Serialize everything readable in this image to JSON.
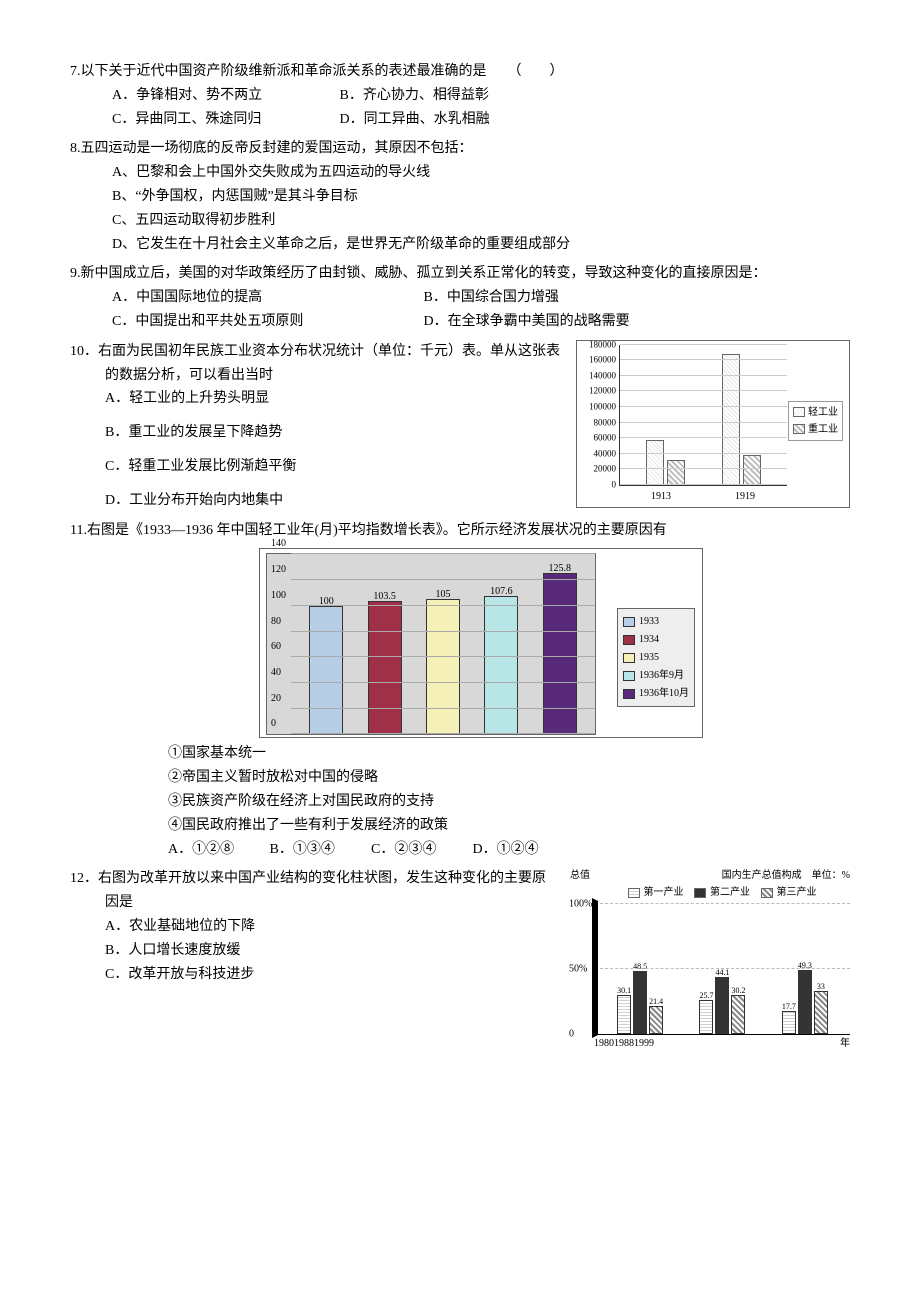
{
  "q7": {
    "stem": "7.以下关于近代中国资产阶级维新派和革命派关系的表述最准确的是　　（　　）",
    "a": "A．争锋相对、势不两立",
    "b": "B．齐心协力、相得益彰",
    "c": "C．异曲同工、殊途同归",
    "d": "D．同工异曲、水乳相融"
  },
  "q8": {
    "stem": "8.五四运动是一场彻底的反帝反封建的爱国运动，其原因不包括：",
    "a": "A、巴黎和会上中国外交失败成为五四运动的导火线",
    "b": "B、“外争国权，内惩国贼”是其斗争目标",
    "c": "C、五四运动取得初步胜利",
    "d": "D、它发生在十月社会主义革命之后，是世界无产阶级革命的重要组成部分"
  },
  "q9": {
    "stem": "9.新中国成立后，美国的对华政策经历了由封锁、威胁、孤立到关系正常化的转变，导致这种变化的直接原因是：",
    "a": "A．中国国际地位的提高",
    "b": "B．中国综合国力增强",
    "c": "C．中国提出和平共处五项原则",
    "d": "D．在全球争霸中美国的战略需要"
  },
  "q10": {
    "stem": "10．右面为民国初年民族工业资本分布状况统计（单位：千元）表。单从这张表的数据分析，可以看出当时",
    "a": "A．轻工业的上升势头明显",
    "b": "B．重工业的发展呈下降趋势",
    "c": "C．轻重工业发展比例渐趋平衡",
    "d": "D．工业分布开始向内地集中",
    "chart": {
      "type": "bar",
      "yticks": [
        0,
        20000,
        40000,
        60000,
        80000,
        100000,
        120000,
        140000,
        160000,
        180000
      ],
      "ymax": 180000,
      "categories": [
        "1913",
        "1919"
      ],
      "series": [
        {
          "name": "轻工业",
          "pattern": "pattern-light",
          "values": [
            58000,
            168000
          ]
        },
        {
          "name": "重工业",
          "pattern": "pattern-heavy",
          "values": [
            32000,
            38000
          ]
        }
      ],
      "legend": [
        "轻工业",
        "重工业"
      ],
      "border_color": "#666666",
      "grid_color": "#cccccc"
    }
  },
  "q11": {
    "stem": "11.右图是《1933—1936 年中国轻工业年(月)平均指数增长表》。它所示经济发展状况的主要原因有",
    "chart": {
      "type": "bar",
      "ymax": 140,
      "yticks": [
        0,
        20,
        40,
        60,
        80,
        100,
        120,
        140
      ],
      "bars": [
        {
          "label": "1933",
          "value": 100,
          "color": "#b8cde6"
        },
        {
          "label": "1934",
          "value": 103.5,
          "color": "#a03048"
        },
        {
          "label": "1935",
          "value": 105,
          "color": "#f5f0b8"
        },
        {
          "label": "1936年9月",
          "value": 107.6,
          "color": "#b8e6e6"
        },
        {
          "label": "1936年10月",
          "value": 125.8,
          "color": "#5a2a7a"
        }
      ],
      "plot_bg": "#d8d8d8",
      "grid_color": "#aaaaaa"
    },
    "s1": "①国家基本统一",
    "s2": "②帝国主义暂时放松对中国的侵略",
    "s3": "③民族资产阶级在经济上对国民政府的支持",
    "s4": "④国民政府推出了一些有利于发展经济的政策",
    "a": "A．①②⑧",
    "b": "B．①③④",
    "c": "C．②③④",
    "d": "D．①②④"
  },
  "q12": {
    "stem": "12．右图为改革开放以来中国产业结构的变化柱状图，发生这种变化的主要原因是",
    "a": "A．农业基础地位的下降",
    "b": "B．人口增长速度放缓",
    "c": "C．改革开放与科技进步",
    "chart": {
      "type": "bar",
      "title_left": "总值",
      "title_right": "国内生产总值构成　单位：%",
      "legend": [
        {
          "name": "第一产业",
          "pattern": "pat-a"
        },
        {
          "name": "第二产业",
          "pattern": "pat-b"
        },
        {
          "name": "第三产业",
          "pattern": "pat-c"
        }
      ],
      "ymax": 100,
      "yticks": [
        0,
        50,
        100
      ],
      "ytick_labels": [
        "0",
        "50%",
        "100%"
      ],
      "years": [
        "1980",
        "1988",
        "1999"
      ],
      "data": [
        {
          "year": "1980",
          "v": [
            30.1,
            48.5,
            21.4
          ]
        },
        {
          "year": "1988",
          "v": [
            25.7,
            44.1,
            30.2
          ]
        },
        {
          "year": "1999",
          "v": [
            17.7,
            49.3,
            33.0
          ]
        }
      ],
      "xlabel": "年"
    }
  }
}
